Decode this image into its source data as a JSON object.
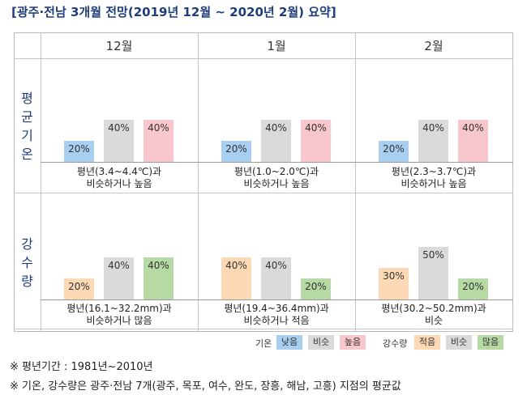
{
  "title": "[광주·전남 3개월 전망(2019년 12월 ~ 2020년 2월) 요약]",
  "months": [
    "12월",
    "1월",
    "2월"
  ],
  "row_labels": [
    [
      "평",
      "균",
      "기",
      "온"
    ],
    [
      "강",
      "수",
      "량"
    ]
  ],
  "chart_data": [
    {
      "type": "bar",
      "name": "평균기온",
      "categories": [
        "낮음",
        "비슷",
        "높음"
      ],
      "colors": [
        "#a8cff0",
        "#dadada",
        "#f8c6cd"
      ],
      "ylim": [
        0,
        50
      ],
      "months": [
        {
          "month": "12월",
          "values": [
            20,
            40,
            40
          ],
          "labels": [
            "20%",
            "40%",
            "40%"
          ],
          "desc": [
            "평년(3.4~4.4℃)과",
            "비슷하거나 높음"
          ]
        },
        {
          "month": "1월",
          "values": [
            20,
            40,
            40
          ],
          "labels": [
            "20%",
            "40%",
            "40%"
          ],
          "desc": [
            "평년(1.0~2.0℃)과",
            "비슷하거나 높음"
          ]
        },
        {
          "month": "2월",
          "values": [
            20,
            40,
            40
          ],
          "labels": [
            "20%",
            "40%",
            "40%"
          ],
          "desc": [
            "평년(2.3~3.7℃)과",
            "비슷하거나 높음"
          ]
        }
      ]
    },
    {
      "type": "bar",
      "name": "강수량",
      "categories": [
        "적음",
        "비슷",
        "많음"
      ],
      "colors": [
        "#fcd9b4",
        "#dadada",
        "#b7d9a4"
      ],
      "ylim": [
        0,
        50
      ],
      "months": [
        {
          "month": "12월",
          "values": [
            20,
            40,
            40
          ],
          "labels": [
            "20%",
            "40%",
            "40%"
          ],
          "desc": [
            "평년(16.1~32.2mm)과",
            "비슷하거나 많음"
          ]
        },
        {
          "month": "1월",
          "values": [
            40,
            40,
            20
          ],
          "labels": [
            "40%",
            "40%",
            "20%"
          ],
          "desc": [
            "평년(19.4~36.4mm)과",
            "비슷하거나 적음"
          ]
        },
        {
          "month": "2월",
          "values": [
            30,
            50,
            20
          ],
          "labels": [
            "30%",
            "50%",
            "20%"
          ],
          "desc": [
            "평년(30.2~50.2mm)과",
            "비슷"
          ]
        }
      ]
    }
  ],
  "legend": {
    "temp_label": "기온",
    "temp_items": [
      "낮음",
      "비슷",
      "높음"
    ],
    "precip_label": "강수량",
    "precip_items": [
      "적음",
      "비슷",
      "많음"
    ]
  },
  "notes": [
    "※ 평년기간 : 1981년~2010년",
    "※ 기온, 강수량은 광주·전남 7개(광주, 목포, 여수, 완도, 장흥, 해남, 고흥) 지점의 평균값"
  ]
}
